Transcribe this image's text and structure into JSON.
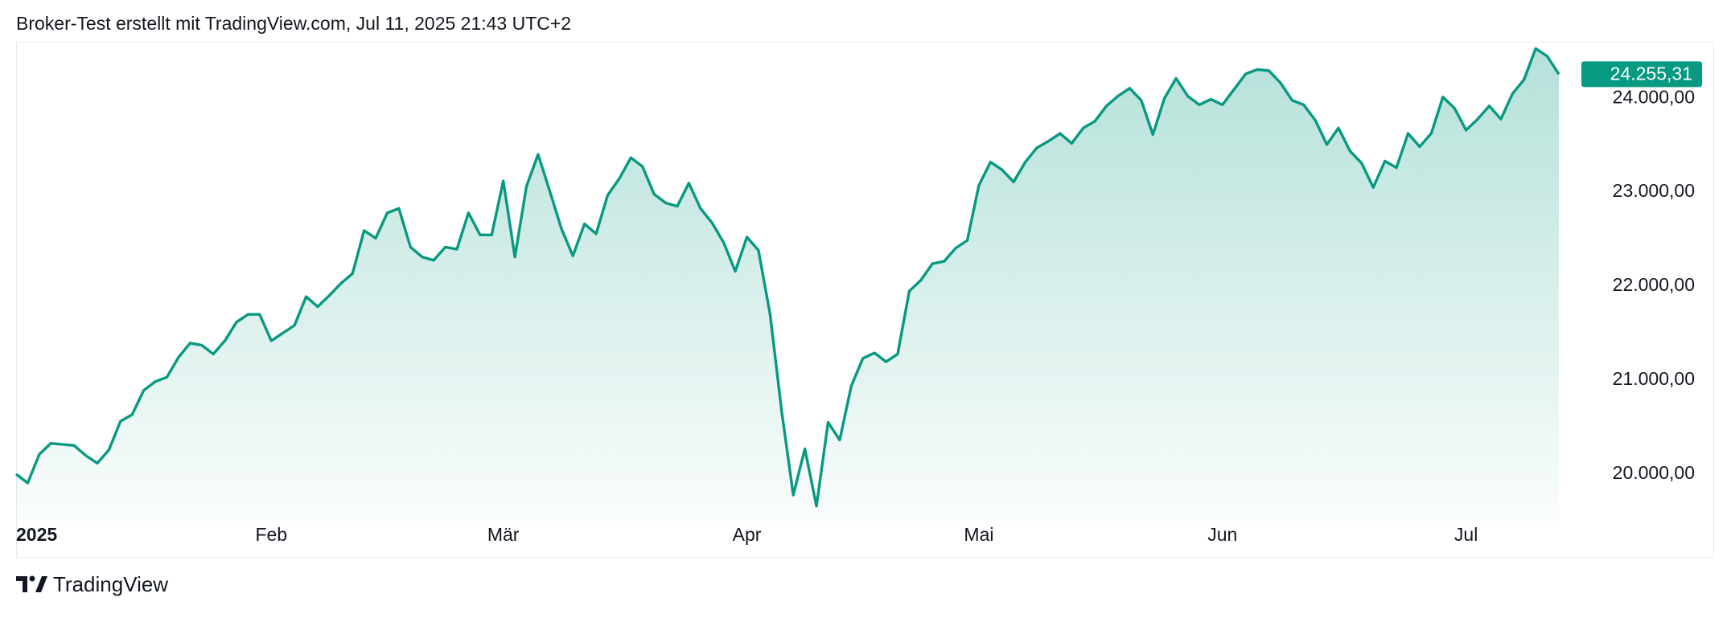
{
  "chart_data": {
    "type": "area",
    "title": "Broker-Test erstellt mit TradingView.com, Jul 11, 2025 21:43 UTC+2",
    "source": "TradingView",
    "color": "#089981",
    "grid": false,
    "ylim": [
      19500,
      24600
    ],
    "yticks": [
      {
        "value": 20000,
        "label": "20.000,00"
      },
      {
        "value": 21000,
        "label": "21.000,00"
      },
      {
        "value": 22000,
        "label": "22.000,00"
      },
      {
        "value": 23000,
        "label": "23.000,00"
      },
      {
        "value": 24000,
        "label": "24.000,00"
      }
    ],
    "last_price_label": "24.255,31",
    "categories": [
      "2025",
      null,
      null,
      null,
      null,
      null,
      null,
      null,
      null,
      null,
      null,
      null,
      null,
      null,
      null,
      null,
      null,
      null,
      null,
      null,
      null,
      null,
      "Feb",
      null,
      null,
      null,
      null,
      null,
      null,
      null,
      null,
      null,
      null,
      null,
      null,
      null,
      null,
      null,
      null,
      null,
      null,
      null,
      "Mär",
      null,
      null,
      null,
      null,
      null,
      null,
      null,
      null,
      null,
      null,
      null,
      null,
      null,
      null,
      null,
      null,
      null,
      null,
      null,
      null,
      "Apr",
      null,
      null,
      null,
      null,
      null,
      null,
      null,
      null,
      null,
      null,
      null,
      null,
      null,
      null,
      null,
      null,
      null,
      null,
      null,
      "Mai",
      null,
      null,
      null,
      null,
      null,
      null,
      null,
      null,
      null,
      null,
      null,
      null,
      null,
      null,
      null,
      null,
      null,
      null,
      null,
      null,
      "Jun",
      null,
      null,
      null,
      null,
      null,
      null,
      null,
      null,
      null,
      null,
      null,
      null,
      null,
      null,
      null,
      null,
      null,
      null,
      null,
      null,
      "Jul",
      null,
      null,
      null,
      null,
      null,
      null,
      null,
      null
    ],
    "values": [
      20000,
      19906,
      20211,
      20328,
      20317,
      20305,
      20199,
      20117,
      20258,
      20563,
      20633,
      20891,
      20985,
      21032,
      21243,
      21394,
      21372,
      21278,
      21419,
      21618,
      21700,
      21700,
      21419,
      21501,
      21583,
      21888,
      21782,
      21900,
      22029,
      22134,
      22592,
      22510,
      22780,
      22827,
      22416,
      22311,
      22276,
      22416,
      22393,
      22780,
      22545,
      22545,
      23120,
      22311,
      23062,
      23402,
      23015,
      22616,
      22323,
      22663,
      22557,
      22968,
      23144,
      23367,
      23273,
      22979,
      22886,
      22850,
      23097,
      22827,
      22674,
      22463,
      22158,
      22522,
      22381,
      21701,
      20669,
      19778,
      20270,
      19660,
      20551,
      20364,
      20938,
      21232,
      21290,
      21196,
      21278,
      21947,
      22064,
      22240,
      22264,
      22405,
      22487,
      23073,
      23320,
      23238,
      23109,
      23320,
      23472,
      23543,
      23625,
      23519,
      23683,
      23754,
      23918,
      24023,
      24106,
      23977,
      23613,
      24000,
      24211,
      24023,
      23930,
      23988,
      23930,
      24094,
      24258,
      24305,
      24293,
      24164,
      23977,
      23930,
      23765,
      23507,
      23683,
      23437,
      23308,
      23050,
      23331,
      23261,
      23625,
      23484,
      23625,
      24012,
      23894,
      23660,
      23777,
      23918,
      23777,
      24047,
      24199,
      24528,
      24446,
      24255.31
    ]
  }
}
